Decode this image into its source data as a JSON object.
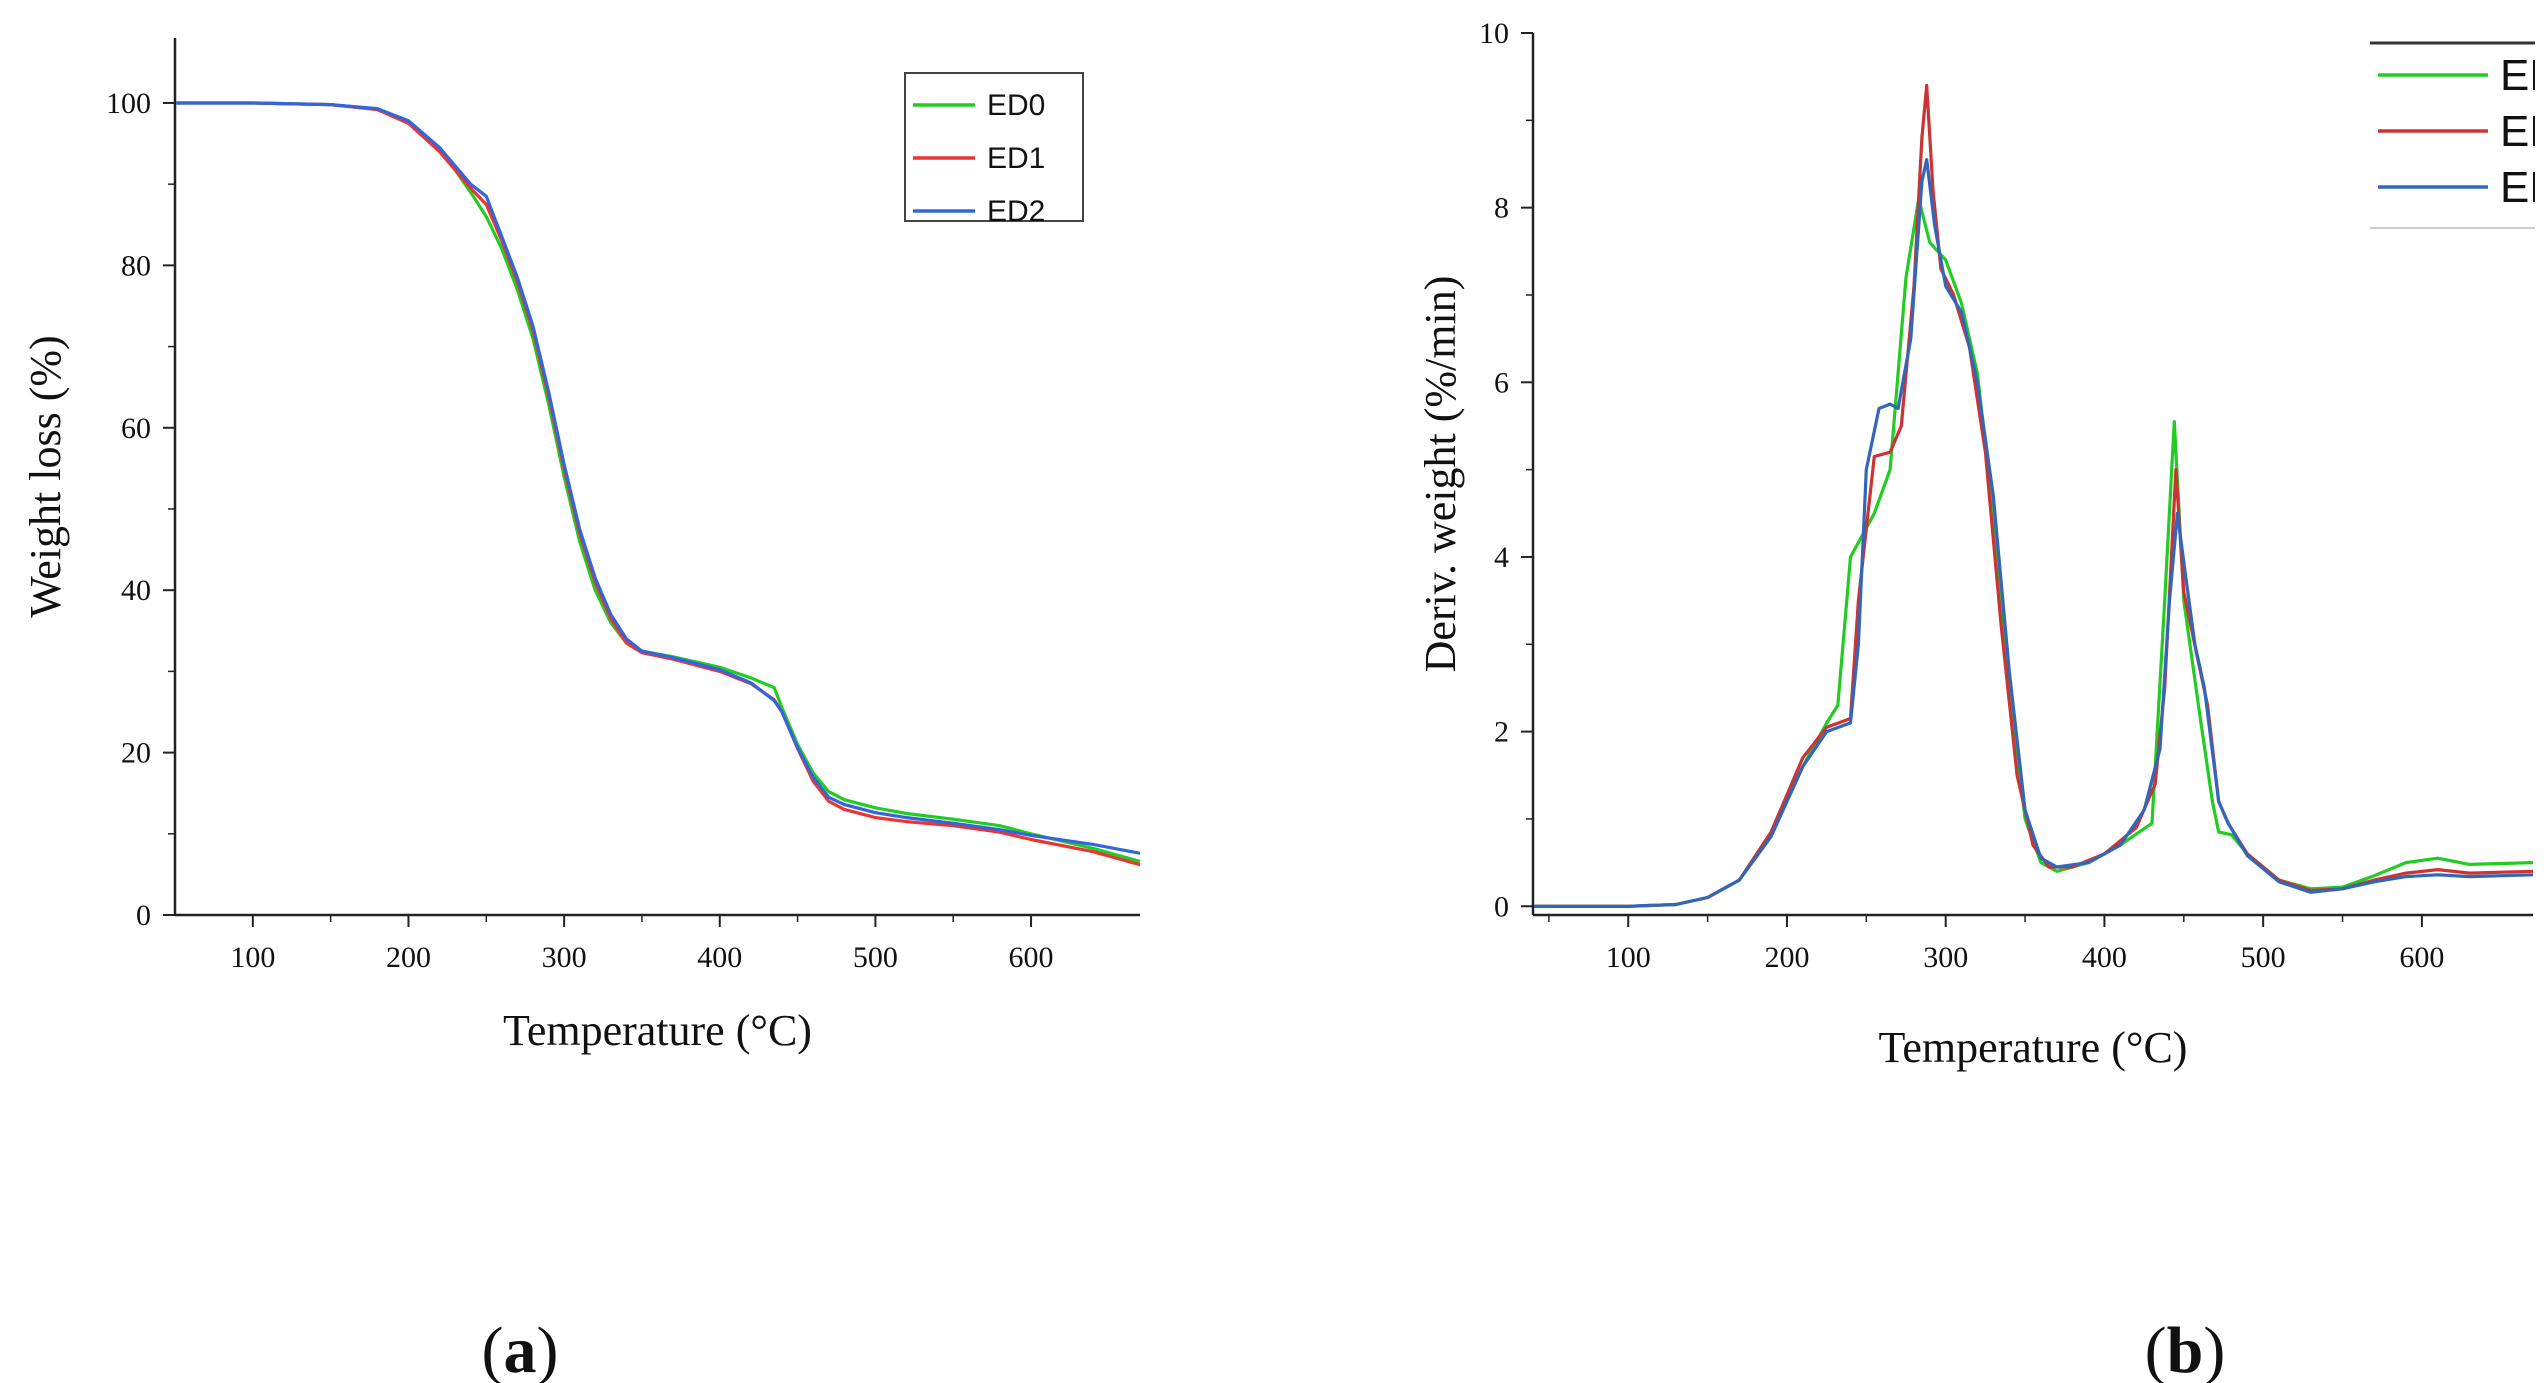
{
  "chart_data": [
    {
      "type": "line",
      "panel_label": "a",
      "title": "",
      "xlabel": "Temperature (°C)",
      "ylabel": "Weight loss (%)",
      "xlim": [
        50,
        670
      ],
      "ylim": [
        0,
        108
      ],
      "xticks": [
        100,
        200,
        300,
        400,
        500,
        600
      ],
      "yticks": [
        0,
        20,
        40,
        60,
        80,
        100
      ],
      "legend": "top-right",
      "series": [
        {
          "name": "ED0",
          "color": "#22cc22",
          "points": [
            [
              50,
              100
            ],
            [
              100,
              100
            ],
            [
              150,
              99.8
            ],
            [
              180,
              99.2
            ],
            [
              200,
              97.5
            ],
            [
              220,
              94.5
            ],
            [
              240,
              89
            ],
            [
              250,
              86
            ],
            [
              260,
              82
            ],
            [
              270,
              77
            ],
            [
              280,
              71
            ],
            [
              290,
              63
            ],
            [
              300,
              54
            ],
            [
              310,
              46
            ],
            [
              320,
              40
            ],
            [
              330,
              36
            ],
            [
              340,
              33.5
            ],
            [
              350,
              32.5
            ],
            [
              370,
              31.8
            ],
            [
              400,
              30.5
            ],
            [
              420,
              29.2
            ],
            [
              435,
              28
            ],
            [
              440,
              25.5
            ],
            [
              450,
              21
            ],
            [
              460,
              17.5
            ],
            [
              470,
              15.2
            ],
            [
              480,
              14.2
            ],
            [
              500,
              13.2
            ],
            [
              520,
              12.5
            ],
            [
              550,
              11.8
            ],
            [
              580,
              11
            ],
            [
              600,
              10
            ],
            [
              640,
              8.2
            ],
            [
              670,
              6.6
            ]
          ]
        },
        {
          "name": "ED1",
          "color": "#ee3333",
          "points": [
            [
              50,
              100
            ],
            [
              100,
              100
            ],
            [
              150,
              99.8
            ],
            [
              180,
              99.2
            ],
            [
              200,
              97.5
            ],
            [
              220,
              94
            ],
            [
              240,
              89.5
            ],
            [
              250,
              87.5
            ],
            [
              260,
              83
            ],
            [
              270,
              78
            ],
            [
              280,
              72
            ],
            [
              290,
              64
            ],
            [
              300,
              55
            ],
            [
              310,
              47
            ],
            [
              320,
              41
            ],
            [
              330,
              36.5
            ],
            [
              340,
              33.5
            ],
            [
              350,
              32.3
            ],
            [
              370,
              31.5
            ],
            [
              400,
              30
            ],
            [
              420,
              28.5
            ],
            [
              435,
              26.5
            ],
            [
              440,
              25
            ],
            [
              450,
              20.5
            ],
            [
              460,
              16.5
            ],
            [
              470,
              14
            ],
            [
              480,
              13
            ],
            [
              500,
              12
            ],
            [
              520,
              11.5
            ],
            [
              550,
              11
            ],
            [
              580,
              10.2
            ],
            [
              600,
              9.3
            ],
            [
              640,
              7.8
            ],
            [
              670,
              6.2
            ]
          ]
        },
        {
          "name": "ED2",
          "color": "#3366dd",
          "points": [
            [
              50,
              100
            ],
            [
              100,
              100
            ],
            [
              150,
              99.8
            ],
            [
              180,
              99.3
            ],
            [
              200,
              97.8
            ],
            [
              220,
              94.5
            ],
            [
              240,
              90
            ],
            [
              250,
              88.5
            ],
            [
              260,
              83.5
            ],
            [
              270,
              78.5
            ],
            [
              280,
              72.5
            ],
            [
              290,
              64.5
            ],
            [
              300,
              55.5
            ],
            [
              310,
              47.5
            ],
            [
              320,
              41.5
            ],
            [
              330,
              37
            ],
            [
              340,
              34
            ],
            [
              350,
              32.5
            ],
            [
              370,
              31.7
            ],
            [
              400,
              30.2
            ],
            [
              420,
              28.6
            ],
            [
              435,
              26.4
            ],
            [
              440,
              25
            ],
            [
              450,
              20.6
            ],
            [
              460,
              17
            ],
            [
              470,
              14.5
            ],
            [
              480,
              13.6
            ],
            [
              500,
              12.6
            ],
            [
              520,
              12
            ],
            [
              550,
              11.3
            ],
            [
              580,
              10.5
            ],
            [
              600,
              9.8
            ],
            [
              640,
              8.7
            ],
            [
              670,
              7.6
            ]
          ]
        }
      ]
    },
    {
      "type": "line",
      "panel_label": "b",
      "title": "",
      "xlabel": "Temperature (°C)",
      "ylabel": "Deriv. weight (%/min)",
      "xlim": [
        40,
        670
      ],
      "ylim": [
        -0.1,
        10
      ],
      "xticks": [
        100,
        200,
        300,
        400,
        500,
        600
      ],
      "yticks": [
        0,
        2,
        4,
        6,
        8,
        10
      ],
      "legend": "top-right (clipped)",
      "series": [
        {
          "name": "ED",
          "color": "#22cc22",
          "points": [
            [
              40,
              0
            ],
            [
              100,
              0
            ],
            [
              130,
              0.02
            ],
            [
              150,
              0.1
            ],
            [
              170,
              0.3
            ],
            [
              190,
              0.8
            ],
            [
              210,
              1.6
            ],
            [
              225,
              2.1
            ],
            [
              232,
              2.3
            ],
            [
              240,
              4
            ],
            [
              255,
              4.5
            ],
            [
              265,
              5
            ],
            [
              275,
              7.2
            ],
            [
              283,
              8.1
            ],
            [
              290,
              7.6
            ],
            [
              300,
              7.4
            ],
            [
              310,
              6.9
            ],
            [
              320,
              6.1
            ],
            [
              330,
              4.5
            ],
            [
              340,
              2.5
            ],
            [
              350,
              1
            ],
            [
              360,
              0.5
            ],
            [
              370,
              0.4
            ],
            [
              390,
              0.5
            ],
            [
              410,
              0.7
            ],
            [
              430,
              0.95
            ],
            [
              438,
              3.5
            ],
            [
              444,
              5.55
            ],
            [
              450,
              3.5
            ],
            [
              460,
              2.2
            ],
            [
              468,
              1.2
            ],
            [
              472,
              0.85
            ],
            [
              480,
              0.82
            ],
            [
              490,
              0.6
            ],
            [
              510,
              0.3
            ],
            [
              530,
              0.2
            ],
            [
              550,
              0.22
            ],
            [
              570,
              0.35
            ],
            [
              590,
              0.5
            ],
            [
              610,
              0.55
            ],
            [
              630,
              0.48
            ],
            [
              670,
              0.5
            ]
          ]
        },
        {
          "name": "ED",
          "color": "#cc3333",
          "points": [
            [
              40,
              0
            ],
            [
              100,
              0
            ],
            [
              130,
              0.02
            ],
            [
              150,
              0.1
            ],
            [
              170,
              0.3
            ],
            [
              190,
              0.85
            ],
            [
              210,
              1.7
            ],
            [
              225,
              2.05
            ],
            [
              240,
              2.15
            ],
            [
              245,
              3.5
            ],
            [
              255,
              5.15
            ],
            [
              265,
              5.2
            ],
            [
              272,
              5.5
            ],
            [
              280,
              7.1
            ],
            [
              285,
              8.8
            ],
            [
              288,
              9.4
            ],
            [
              292,
              8.2
            ],
            [
              297,
              7.3
            ],
            [
              305,
              7
            ],
            [
              315,
              6.4
            ],
            [
              325,
              5.2
            ],
            [
              335,
              3.2
            ],
            [
              345,
              1.5
            ],
            [
              355,
              0.7
            ],
            [
              365,
              0.45
            ],
            [
              380,
              0.45
            ],
            [
              400,
              0.6
            ],
            [
              420,
              0.9
            ],
            [
              432,
              1.4
            ],
            [
              438,
              2.5
            ],
            [
              445,
              5
            ],
            [
              450,
              3.6
            ],
            [
              458,
              2.9
            ],
            [
              465,
              2.3
            ],
            [
              472,
              1.2
            ],
            [
              478,
              0.95
            ],
            [
              490,
              0.6
            ],
            [
              510,
              0.3
            ],
            [
              530,
              0.18
            ],
            [
              550,
              0.2
            ],
            [
              570,
              0.3
            ],
            [
              590,
              0.38
            ],
            [
              610,
              0.42
            ],
            [
              630,
              0.38
            ],
            [
              670,
              0.4
            ]
          ]
        },
        {
          "name": "ED",
          "color": "#3366bb",
          "points": [
            [
              40,
              0
            ],
            [
              100,
              0
            ],
            [
              130,
              0.02
            ],
            [
              150,
              0.1
            ],
            [
              170,
              0.3
            ],
            [
              190,
              0.8
            ],
            [
              210,
              1.6
            ],
            [
              225,
              2
            ],
            [
              240,
              2.1
            ],
            [
              245,
              3
            ],
            [
              250,
              5
            ],
            [
              258,
              5.7
            ],
            [
              265,
              5.75
            ],
            [
              270,
              5.7
            ],
            [
              278,
              6.5
            ],
            [
              285,
              8.3
            ],
            [
              288,
              8.55
            ],
            [
              293,
              7.8
            ],
            [
              300,
              7.1
            ],
            [
              310,
              6.8
            ],
            [
              320,
              6
            ],
            [
              330,
              4.7
            ],
            [
              340,
              2.7
            ],
            [
              350,
              1.1
            ],
            [
              360,
              0.55
            ],
            [
              370,
              0.45
            ],
            [
              390,
              0.5
            ],
            [
              410,
              0.7
            ],
            [
              425,
              1.1
            ],
            [
              435,
              1.8
            ],
            [
              441,
              3.5
            ],
            [
              446,
              4.5
            ],
            [
              451,
              3.8
            ],
            [
              457,
              3
            ],
            [
              463,
              2.5
            ],
            [
              472,
              1.2
            ],
            [
              478,
              0.95
            ],
            [
              490,
              0.58
            ],
            [
              510,
              0.28
            ],
            [
              530,
              0.16
            ],
            [
              550,
              0.2
            ],
            [
              570,
              0.28
            ],
            [
              590,
              0.34
            ],
            [
              610,
              0.36
            ],
            [
              630,
              0.34
            ],
            [
              670,
              0.36
            ]
          ]
        }
      ]
    }
  ]
}
